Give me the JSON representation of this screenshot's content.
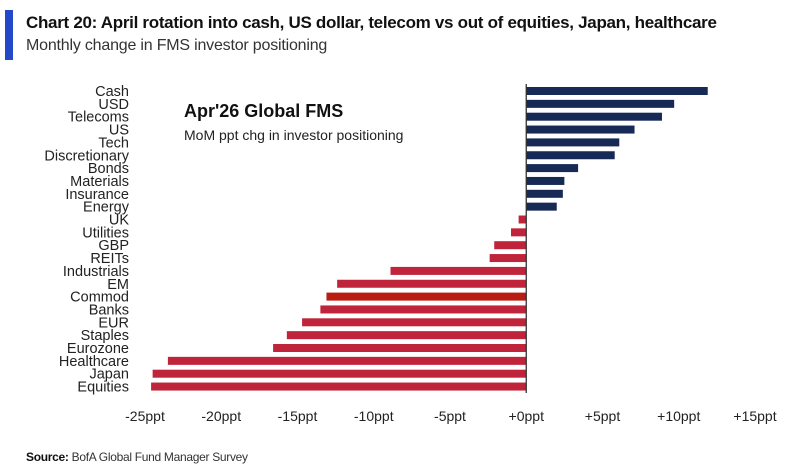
{
  "header": {
    "title": "Chart 20: April rotation into cash, US dollar, telecom vs out of equities, Japan, healthcare",
    "subtitle": "Monthly change in FMS investor positioning"
  },
  "footer": {
    "source_label": "Source:",
    "source_text": " BofA Global Fund Manager Survey"
  },
  "colors": {
    "accent": "#2348c8",
    "positive": "#172a55",
    "negative": "#c0243a",
    "highlight": "#b81c12"
  },
  "chart_data": {
    "type": "bar",
    "orientation": "horizontal",
    "title": "Apr'26 Global FMS",
    "subtitle": "MoM ppt chg in investor positioning",
    "xlabel": "",
    "ylabel": "",
    "xlim": [
      -25,
      15
    ],
    "x_ticks": [
      -25,
      -20,
      -15,
      -10,
      -5,
      0,
      5,
      10,
      15
    ],
    "x_tick_labels": [
      "-25ppt",
      "-20ppt",
      "-15ppt",
      "-10ppt",
      "-5ppt",
      "+0ppt",
      "+5ppt",
      "+10ppt",
      "+15ppt"
    ],
    "grid": false,
    "highlighted_category": "Commod",
    "categories": [
      "Cash",
      "USD",
      "Telecoms",
      "US",
      "Tech",
      "Discretionary",
      "Bonds",
      "Materials",
      "Insurance",
      "Energy",
      "UK",
      "Utilities",
      "GBP",
      "REITs",
      "Industrials",
      "EM",
      "Commod",
      "Banks",
      "EUR",
      "Staples",
      "Eurozone",
      "Healthcare",
      "Japan",
      "Equities"
    ],
    "values": [
      11.9,
      9.7,
      8.9,
      7.1,
      6.1,
      5.8,
      3.4,
      2.5,
      2.4,
      2.0,
      -0.5,
      -1.0,
      -2.1,
      -2.4,
      -8.9,
      -12.4,
      -13.1,
      -13.5,
      -14.7,
      -15.7,
      -16.6,
      -23.5,
      -24.5,
      -24.6
    ]
  }
}
